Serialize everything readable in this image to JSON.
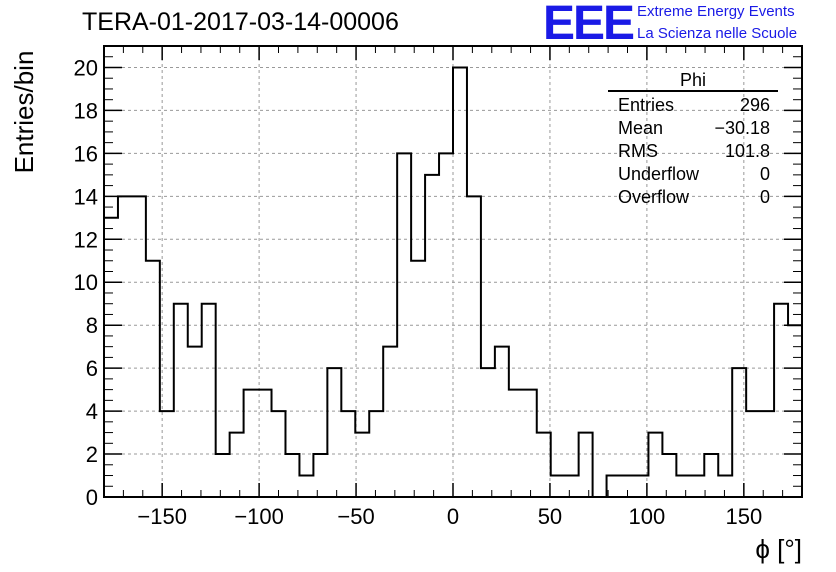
{
  "title": "TERA-01-2017-03-14-00006",
  "logo": {
    "text": "EEE",
    "line1": "Extreme Energy Events",
    "line2": "La Scienza nelle Scuole"
  },
  "colors": {
    "line": "#000000",
    "grid": "#999999",
    "logo": "#1a1ae6"
  },
  "stats": {
    "title": "Phi",
    "rows": [
      {
        "label": "Entries",
        "value": "296"
      },
      {
        "label": "Mean",
        "value": "−30.18"
      },
      {
        "label": "RMS",
        "value": "101.8"
      },
      {
        "label": "Underflow",
        "value": "0"
      },
      {
        "label": "Overflow",
        "value": "0"
      }
    ]
  },
  "chart_data": {
    "type": "histogram",
    "xlabel": "ϕ [°]",
    "ylabel": "Entries/bin",
    "xlim": [
      -180,
      180
    ],
    "ylim": [
      0,
      21
    ],
    "grid": true,
    "bin_width": 7.2,
    "bin_start": -180,
    "counts": [
      13,
      14,
      14,
      11,
      4,
      9,
      7,
      9,
      2,
      3,
      5,
      5,
      4,
      2,
      1,
      2,
      6,
      4,
      3,
      4,
      7,
      16,
      11,
      15,
      16,
      20,
      14,
      6,
      7,
      5,
      5,
      3,
      1,
      1,
      3,
      0,
      1,
      1,
      1,
      3,
      2,
      1,
      1,
      2,
      1,
      6,
      4,
      4,
      9,
      8
    ],
    "xticks": [
      -150,
      -100,
      -50,
      0,
      50,
      100,
      150
    ],
    "xtick_labels": [
      "−150",
      "−100",
      "−50",
      "0",
      "50",
      "100",
      "150"
    ],
    "yticks": [
      0,
      2,
      4,
      6,
      8,
      10,
      12,
      14,
      16,
      18,
      20
    ],
    "ytick_labels": [
      "0",
      "2",
      "4",
      "6",
      "8",
      "10",
      "12",
      "14",
      "16",
      "18",
      "20"
    ]
  }
}
